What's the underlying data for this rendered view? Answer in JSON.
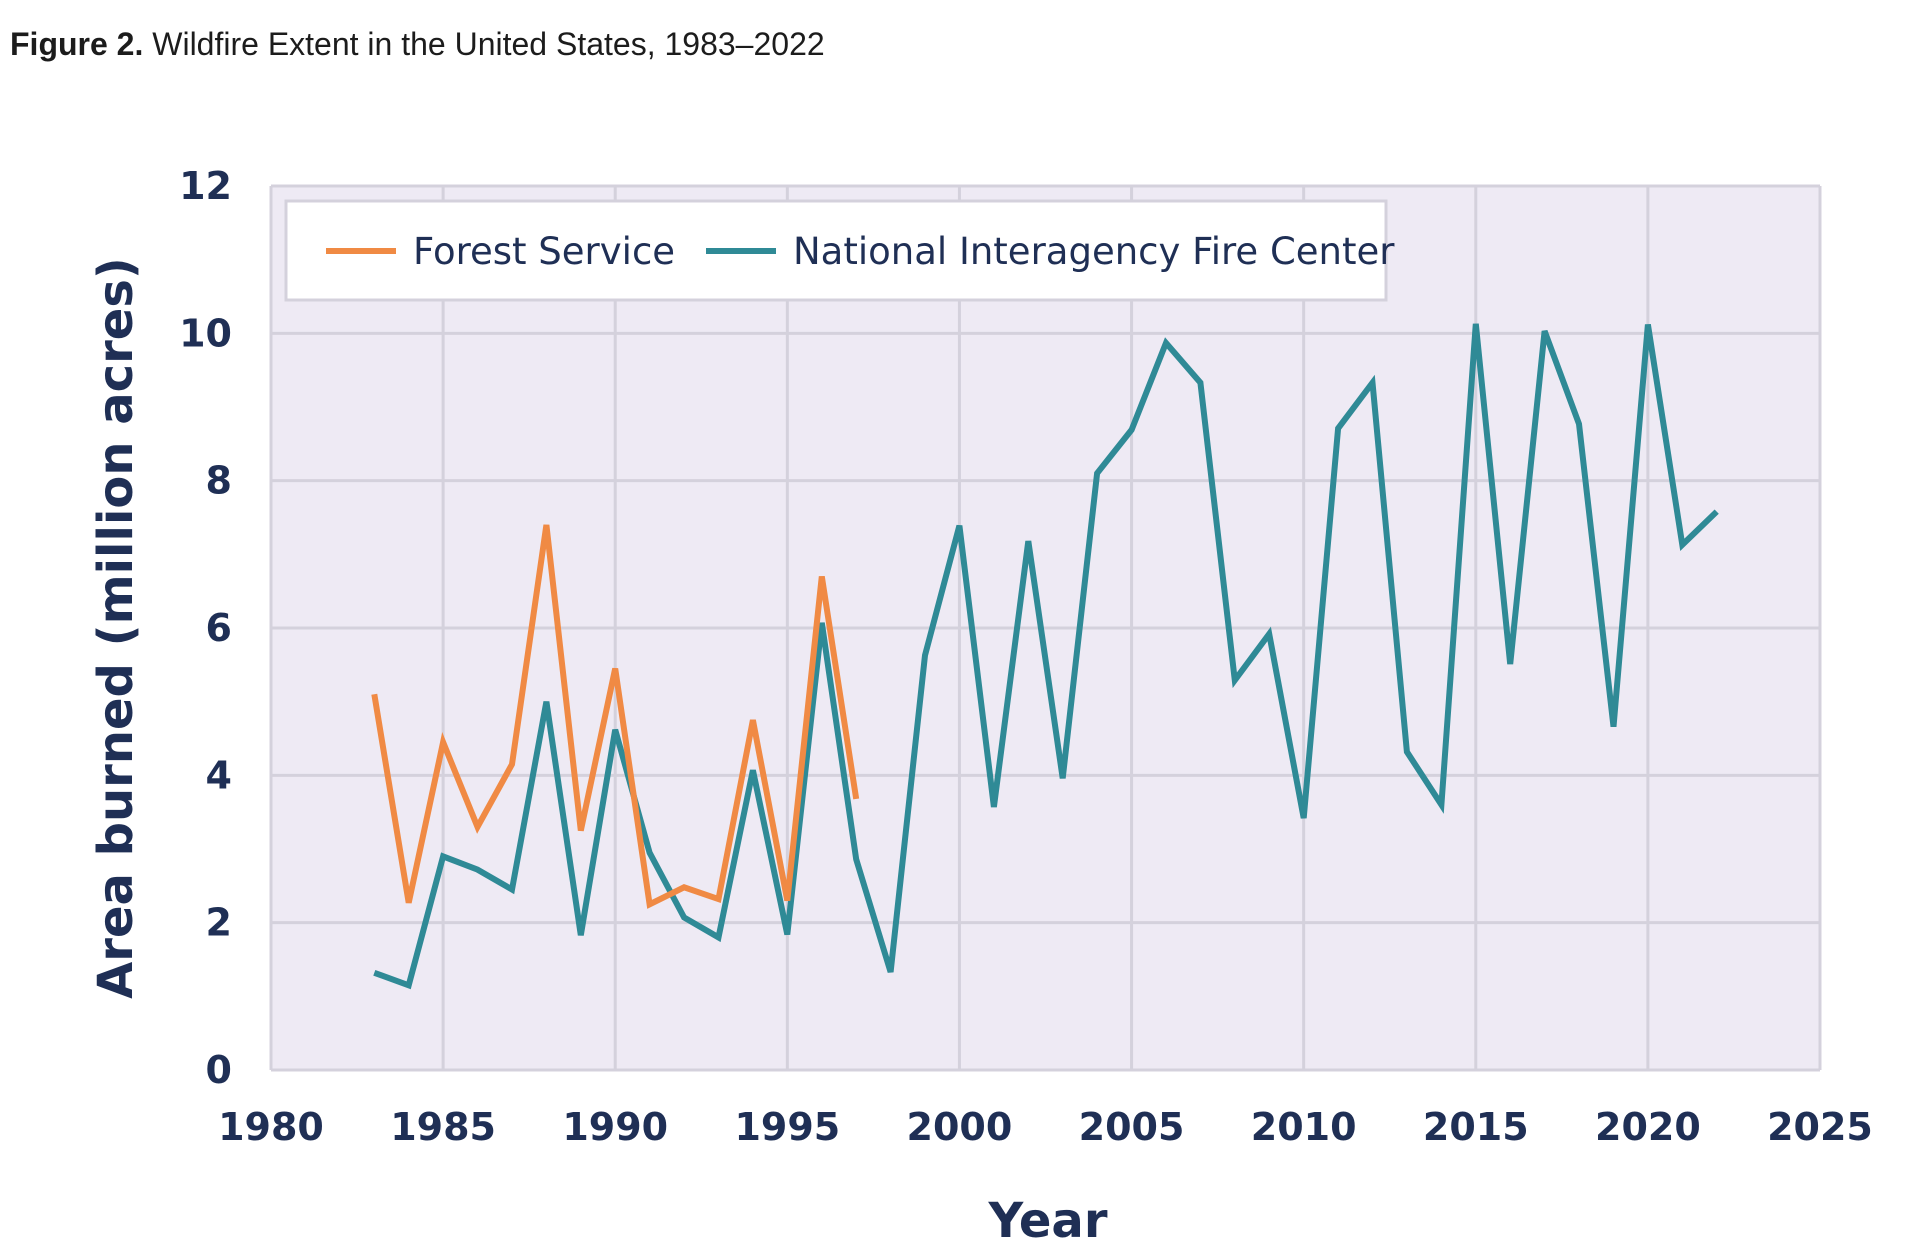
{
  "figure": {
    "label": "Figure 2.",
    "title": "Wildfire Extent in the United States, 1983–2022"
  },
  "colors": {
    "plot_background": "#eeeaf4",
    "grid": "#d4d1dc",
    "axis_text": "#1f2f55",
    "forest_service": "#f08a44",
    "nifc": "#2f8a96"
  },
  "chart_data": {
    "type": "line",
    "title": "Wildfire Extent in the United States, 1983–2022",
    "xlabel": "Year",
    "ylabel": "Area burned (million acres)",
    "xlim": [
      1980,
      2025
    ],
    "ylim": [
      0,
      12
    ],
    "xticks": [
      1980,
      1985,
      1990,
      1995,
      2000,
      2005,
      2010,
      2015,
      2020,
      2025
    ],
    "yticks": [
      0,
      2,
      4,
      6,
      8,
      10,
      12
    ],
    "grid": true,
    "legend_position": "top-left",
    "series": [
      {
        "name": "Forest Service",
        "color": "#f08a44",
        "x": [
          1983,
          1984,
          1985,
          1986,
          1987,
          1988,
          1989,
          1990,
          1991,
          1992,
          1993,
          1994,
          1995,
          1996,
          1997
        ],
        "values": [
          5.1,
          2.27,
          4.45,
          3.3,
          4.15,
          7.4,
          3.25,
          5.45,
          2.25,
          2.48,
          2.32,
          4.75,
          2.3,
          6.7,
          3.68
        ]
      },
      {
        "name": "National Interagency Fire Center",
        "color": "#2f8a96",
        "x": [
          1983,
          1984,
          1985,
          1986,
          1987,
          1988,
          1989,
          1990,
          1991,
          1992,
          1993,
          1994,
          1995,
          1996,
          1997,
          1998,
          1999,
          2000,
          2001,
          2002,
          2003,
          2004,
          2005,
          2006,
          2007,
          2008,
          2009,
          2010,
          2011,
          2012,
          2013,
          2014,
          2015,
          2016,
          2017,
          2018,
          2019,
          2020,
          2021,
          2022
        ],
        "values": [
          1.32,
          1.15,
          2.9,
          2.72,
          2.45,
          5.0,
          1.83,
          4.62,
          2.95,
          2.07,
          1.8,
          4.07,
          1.84,
          6.07,
          2.86,
          1.33,
          5.63,
          7.39,
          3.57,
          7.18,
          3.96,
          8.1,
          8.69,
          9.87,
          9.33,
          5.29,
          5.92,
          3.42,
          8.71,
          9.33,
          4.32,
          3.6,
          10.13,
          5.51,
          10.03,
          8.77,
          4.66,
          10.12,
          7.13,
          7.58
        ]
      }
    ]
  }
}
